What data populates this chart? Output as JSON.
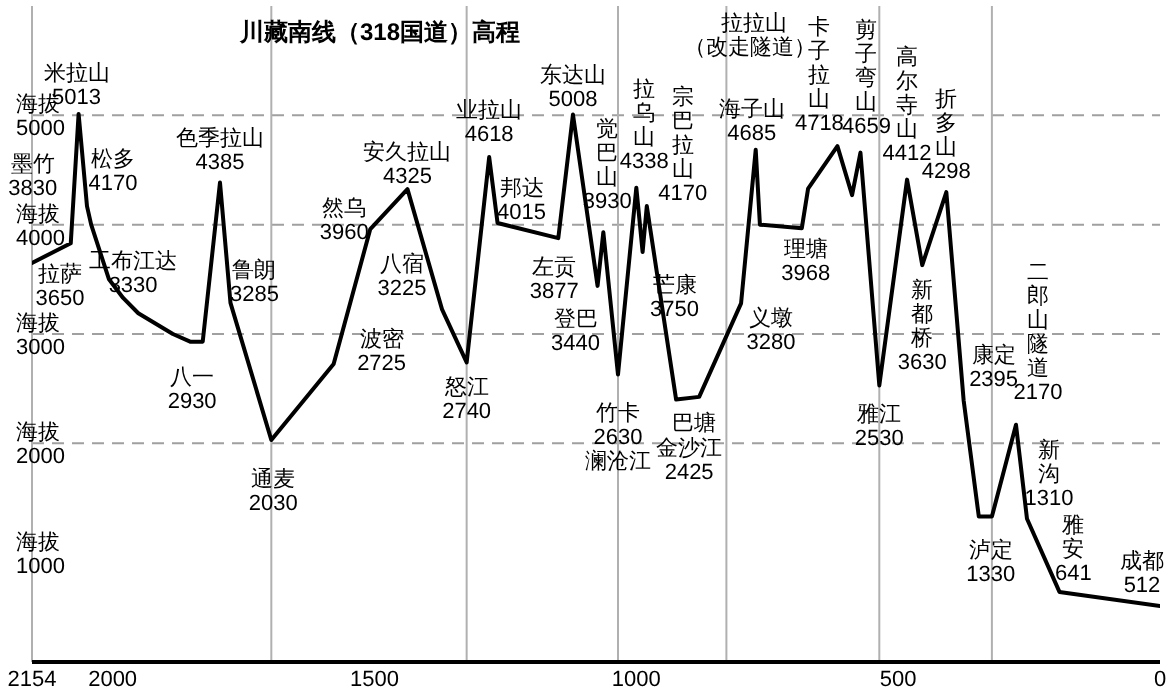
{
  "chart_data": {
    "type": "line",
    "title": "川藏南线（318国道）高程",
    "x": [
      2154,
      2080,
      2065,
      2049,
      2041,
      2007,
      1980,
      1951,
      1885,
      1852,
      1828,
      1795,
      1775,
      1697,
      1578,
      1508,
      1437,
      1371,
      1324,
      1281,
      1265,
      1149,
      1121,
      1074,
      1063,
      1035,
      1000,
      988,
      980,
      924,
      880,
      800,
      772,
      764,
      684,
      672,
      616,
      588,
      572,
      536,
      483,
      454,
      408,
      375,
      346,
      321,
      275,
      254,
      192,
      0
    ],
    "series": [
      {
        "color": "#000000",
        "values": [
          3650,
          3830,
          5013,
          4170,
          4000,
          3500,
          3330,
          3190,
          3000,
          2930,
          2930,
          4385,
          3285,
          2030,
          2725,
          3960,
          4325,
          3225,
          2740,
          4618,
          4015,
          3877,
          5008,
          3440,
          3930,
          2630,
          4338,
          3750,
          4170,
          2400,
          2425,
          3280,
          4685,
          4000,
          3968,
          4330,
          4718,
          4270,
          4659,
          2530,
          4412,
          3630,
          4298,
          2395,
          1330,
          1330,
          2170,
          1310,
          641,
          512
        ]
      }
    ],
    "xlim": [
      2154,
      0
    ],
    "xticks": [
      2154,
      2000,
      1500,
      1000,
      500,
      0
    ],
    "ylim": [
      0,
      6000
    ],
    "yticks": [
      1000,
      2000,
      3000,
      4000,
      5000
    ],
    "ylabel": "海拔",
    "marker": "none",
    "ref_lines": [
      {
        "axis": "y",
        "value": 2000,
        "color": "#a0a0a0",
        "line_style": "dashed"
      },
      {
        "axis": "y",
        "value": 3000,
        "color": "#a0a0a0",
        "line_style": "dashed"
      },
      {
        "axis": "y",
        "value": 4000,
        "color": "#a0a0a0",
        "line_style": "dashed"
      },
      {
        "axis": "y",
        "value": 5000,
        "color": "#a0a0a0",
        "line_style": "dashed"
      },
      {
        "axis": "x",
        "value": 2154,
        "color": "#b0b0b0",
        "line_style": "solid"
      },
      {
        "axis": "x",
        "value": 1697,
        "color": "#b0b0b0",
        "line_style": "solid"
      },
      {
        "axis": "x",
        "value": 1324,
        "color": "#b0b0b0",
        "line_style": "solid"
      },
      {
        "axis": "x",
        "value": 1035,
        "color": "#b0b0b0",
        "line_style": "solid"
      },
      {
        "axis": "x",
        "value": 828,
        "color": "#b0b0b0",
        "line_style": "solid"
      },
      {
        "axis": "x",
        "value": 536,
        "color": "#b0b0b0",
        "line_style": "solid"
      },
      {
        "axis": "x",
        "value": 321,
        "color": "#b0b0b0",
        "line_style": "solid"
      }
    ],
    "annotations": [
      {
        "text": "拉萨\n3650",
        "x": 2154,
        "y": 3650
      },
      {
        "text": "墨竹\n3830",
        "x": 2080,
        "y": 3830
      },
      {
        "text": "米拉山\n5013",
        "x": 2065,
        "y": 5013
      },
      {
        "text": "松多\n4170",
        "x": 2049,
        "y": 4170
      },
      {
        "text": "工布江达\n3330",
        "x": 1980,
        "y": 3330
      },
      {
        "text": "八一\n2930",
        "x": 1852,
        "y": 2930
      },
      {
        "text": "色季拉山\n4385",
        "x": 1795,
        "y": 4385
      },
      {
        "text": "鲁朗\n3285",
        "x": 1775,
        "y": 3285
      },
      {
        "text": "通麦\n2030",
        "x": 1697,
        "y": 2030
      },
      {
        "text": "波密\n2725",
        "x": 1578,
        "y": 2725
      },
      {
        "text": "然乌\n3960",
        "x": 1508,
        "y": 3960
      },
      {
        "text": "安久拉山\n4325",
        "x": 1437,
        "y": 4325
      },
      {
        "text": "八宿\n3225",
        "x": 1371,
        "y": 3225
      },
      {
        "text": "怒江\n2740",
        "x": 1324,
        "y": 2740
      },
      {
        "text": "业拉山\n4618",
        "x": 1281,
        "y": 4618
      },
      {
        "text": "邦达\n4015",
        "x": 1265,
        "y": 4015
      },
      {
        "text": "左贡\n3877",
        "x": 1149,
        "y": 3877
      },
      {
        "text": "东达山\n5008",
        "x": 1121,
        "y": 5008
      },
      {
        "text": "登巴\n3440",
        "x": 1074,
        "y": 3440
      },
      {
        "text": "觉巴山\n3930",
        "x": 1063,
        "y": 3930
      },
      {
        "text": "竹卡\n2630\n澜沧江",
        "x": 1035,
        "y": 2630
      },
      {
        "text": "拉乌山\n4338",
        "x": 1000,
        "y": 4338
      },
      {
        "text": "芒康\n3750",
        "x": 988,
        "y": 3750
      },
      {
        "text": "宗巴拉山\n4170",
        "x": 980,
        "y": 4170
      },
      {
        "text": "巴塘",
        "x": 924,
        "y": 2400
      },
      {
        "text": "金沙江\n2425",
        "x": 880,
        "y": 2425
      },
      {
        "text": "义墩\n3280",
        "x": 800,
        "y": 3280
      },
      {
        "text": "海子山\n4685",
        "x": 772,
        "y": 4685
      },
      {
        "text": "理塘\n3968",
        "x": 684,
        "y": 3968
      },
      {
        "text": "卡子拉山\n4718",
        "x": 616,
        "y": 4718
      },
      {
        "text": "剪子弯山\n4659",
        "x": 572,
        "y": 4659
      },
      {
        "text": "高尔寺山\n4412",
        "x": 483,
        "y": 4412
      },
      {
        "text": "新都桥\n3630",
        "x": 454,
        "y": 3630
      },
      {
        "text": "折多山\n4298",
        "x": 408,
        "y": 4298
      },
      {
        "text": "雅江\n2530",
        "x": 536,
        "y": 2530
      },
      {
        "text": "康定\n2395",
        "x": 375,
        "y": 2395
      },
      {
        "text": "泸定\n1330",
        "x": 346,
        "y": 1330
      },
      {
        "text": "二郎山隧道\n2170",
        "x": 275,
        "y": 2170
      },
      {
        "text": "新沟\n1310",
        "x": 254,
        "y": 1310
      },
      {
        "text": "雅安\n641",
        "x": 192,
        "y": 641
      },
      {
        "text": "成都\n512",
        "x": 0,
        "y": 512
      },
      "拉拉山",
      "（改走隧道）"
    ]
  }
}
